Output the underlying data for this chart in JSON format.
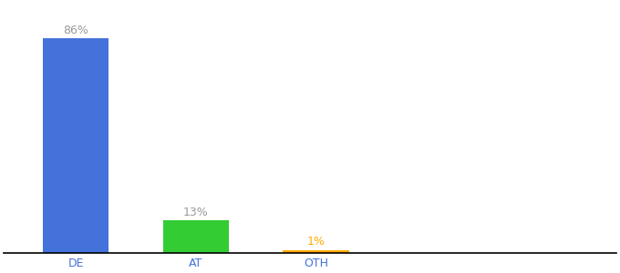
{
  "categories": [
    "DE",
    "AT",
    "OTH"
  ],
  "values": [
    86,
    13,
    1
  ],
  "bar_colors": [
    "#4472db",
    "#33cc33",
    "#ffaa00"
  ],
  "label_colors": [
    "#999999",
    "#999999",
    "#ffaa00"
  ],
  "labels": [
    "86%",
    "13%",
    "1%"
  ],
  "ylim": [
    0,
    100
  ],
  "background_color": "#ffffff",
  "xtick_color": "#4472db",
  "label_fontsize": 9,
  "bar_width": 0.55
}
